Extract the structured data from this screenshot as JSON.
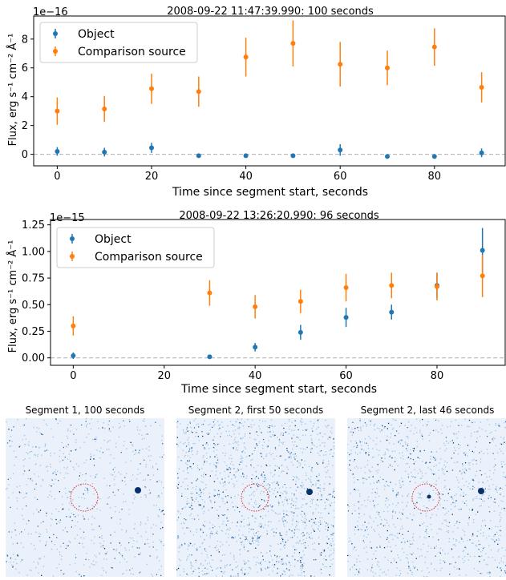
{
  "chart_data": [
    {
      "type": "scatter",
      "title": "2008-09-22 11:47:39.990: 100 seconds",
      "xlabel": "Time since segment start, seconds",
      "ylabel": "Flux, erg s⁻¹ cm⁻² Å⁻¹",
      "offset_text": "1e−16",
      "xlim": [
        -5,
        95
      ],
      "ylim": [
        -0.8,
        9.6
      ],
      "xticks": [
        0,
        20,
        40,
        60,
        80
      ],
      "yticks": [
        0,
        2,
        4,
        6,
        8
      ],
      "reference_line": 0,
      "legend_position": "upper left",
      "series": [
        {
          "name": "Object",
          "color": "#1f77b4",
          "x": [
            0,
            10,
            20,
            30,
            40,
            50,
            60,
            70,
            80,
            90
          ],
          "y": [
            0.2,
            0.15,
            0.45,
            -0.1,
            -0.1,
            -0.1,
            0.3,
            -0.15,
            -0.15,
            0.1
          ],
          "err": [
            0.3,
            0.3,
            0.35,
            0.1,
            0.1,
            0.1,
            0.4,
            0.1,
            0.1,
            0.3
          ]
        },
        {
          "name": "Comparison source",
          "color": "#ff7f0e",
          "x": [
            0,
            10,
            20,
            30,
            40,
            50,
            60,
            70,
            80,
            90
          ],
          "y": [
            3.0,
            3.15,
            4.55,
            4.35,
            6.75,
            7.7,
            6.25,
            6.0,
            7.45,
            4.65
          ],
          "err": [
            0.95,
            0.9,
            1.05,
            1.05,
            1.35,
            1.6,
            1.55,
            1.2,
            1.3,
            1.05
          ]
        }
      ]
    },
    {
      "type": "scatter",
      "title": "2008-09-22 13:26:20.990: 96 seconds",
      "xlabel": "Time since segment start, seconds",
      "ylabel": "Flux, erg s⁻¹ cm⁻² Å⁻¹",
      "offset_text": "1e−15",
      "xlim": [
        -5,
        95
      ],
      "ylim": [
        -0.07,
        1.3
      ],
      "xticks": [
        0,
        20,
        40,
        60,
        80
      ],
      "yticks": [
        0.0,
        0.25,
        0.5,
        0.75,
        1.0,
        1.25
      ],
      "ytick_labels": [
        "0.00",
        "0.25",
        "0.50",
        "0.75",
        "1.00",
        "1.25"
      ],
      "reference_line": 0,
      "legend_position": "upper left",
      "series": [
        {
          "name": "Object",
          "color": "#1f77b4",
          "x": [
            0,
            30,
            40,
            50,
            60,
            70,
            80,
            90
          ],
          "y": [
            0.02,
            0.01,
            0.1,
            0.24,
            0.38,
            0.43,
            0.68,
            1.01
          ],
          "err": [
            0.03,
            0.02,
            0.04,
            0.07,
            0.09,
            0.07,
            0.12,
            0.21
          ]
        },
        {
          "name": "Comparison source",
          "color": "#ff7f0e",
          "x": [
            0,
            30,
            40,
            50,
            60,
            70,
            80,
            90
          ],
          "y": [
            0.3,
            0.61,
            0.48,
            0.53,
            0.66,
            0.68,
            0.67,
            0.77
          ],
          "err": [
            0.09,
            0.12,
            0.11,
            0.11,
            0.13,
            0.12,
            0.13,
            0.2
          ]
        }
      ]
    }
  ],
  "images": [
    {
      "title": "Segment 1, 100 seconds"
    },
    {
      "title": "Segment 2, first 50 seconds"
    },
    {
      "title": "Segment 2, last 46 seconds"
    }
  ],
  "colors": {
    "object": "#1f77b4",
    "comparison": "#ff7f0e",
    "circle": "#e03030",
    "image_dark": "#08306b"
  }
}
